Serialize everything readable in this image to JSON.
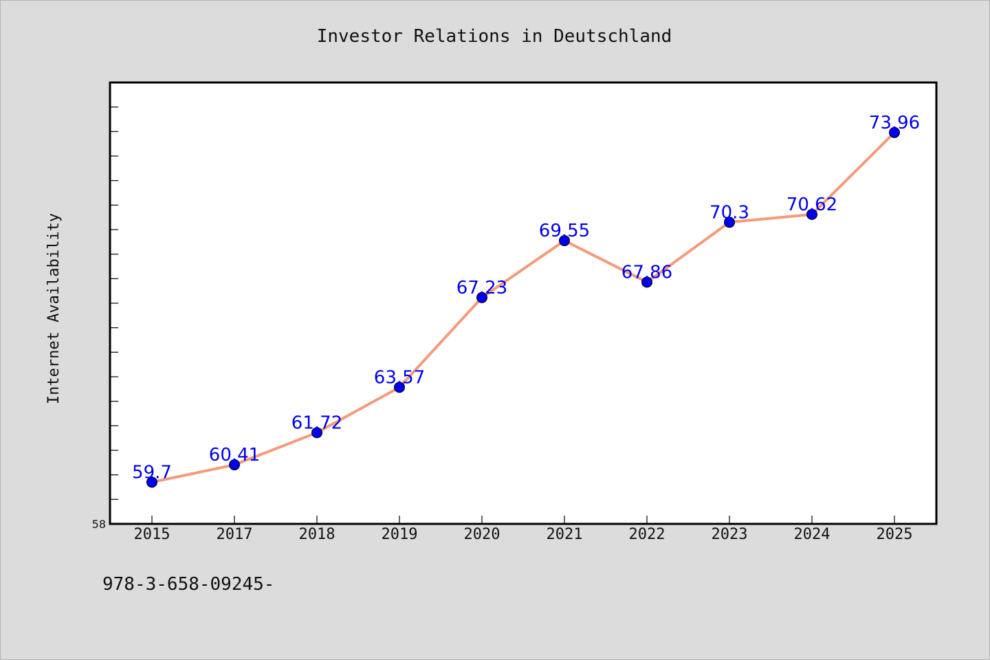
{
  "chart_data": {
    "type": "line",
    "title": "Investor Relations in Deutschland",
    "xlabel": "",
    "ylabel": "Internet Availability",
    "categories": [
      "2015",
      "2017",
      "2018",
      "2019",
      "2020",
      "2021",
      "2022",
      "2023",
      "2024",
      "2025"
    ],
    "series": [
      {
        "values": [
          59.7,
          60.41,
          61.72,
          63.57,
          67.23,
          69.55,
          67.86,
          70.3,
          70.62,
          73.96
        ]
      }
    ],
    "data_labels": [
      "59.7",
      "60.41",
      "61.72",
      "63.57",
      "67.23",
      "69.55",
      "67.86",
      "70.3",
      "70.62",
      "73.96"
    ],
    "ylim": [
      58,
      76
    ],
    "y_tick_labels": [
      "58"
    ],
    "grid": false,
    "legend": "none",
    "colors": {
      "line": "#f59a7a",
      "marker": "#0000ee",
      "data_label": "#0000ee",
      "plot_background": "#ffffff",
      "figure_background": "#dcdcdc"
    }
  },
  "footer_text": "978-3-658-09245-"
}
